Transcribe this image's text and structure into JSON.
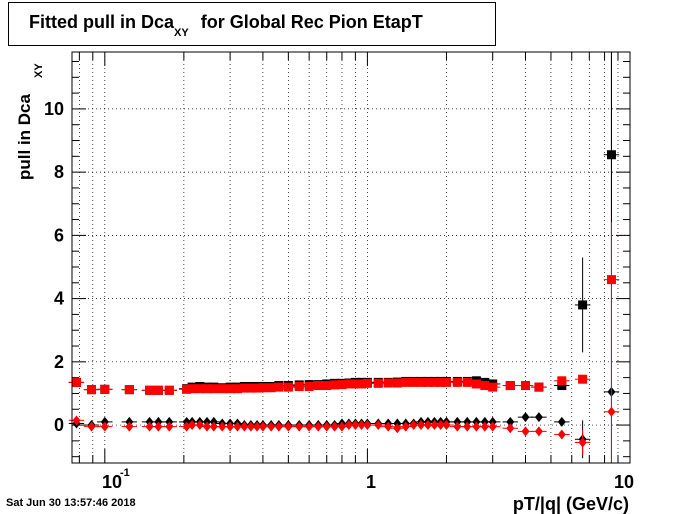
{
  "title": {
    "main": "Fitted pull in Dca",
    "sub": "XY",
    "rest": "for Global Rec Pion EtapT"
  },
  "timestamp": "Sat Jun 30 13:57:46 2018",
  "chart_data": {
    "type": "scatter",
    "title": "Fitted pull in Dca XY for Global Rec Pion EtapT",
    "xlabel": "pT/|q| (GeV/c)",
    "ylabel_main": "pull in Dca",
    "ylabel_sub": "XY",
    "xscale": "log",
    "xlim": [
      0.075,
      10
    ],
    "ylim": [
      -1.2,
      11.8
    ],
    "grid": true,
    "x_tick_labels": [
      {
        "x": 0.1,
        "base": "10",
        "exp": "-1"
      },
      {
        "x": 1,
        "base": "1",
        "exp": ""
      },
      {
        "x": 10,
        "base": "10",
        "exp": ""
      }
    ],
    "y_ticks": [
      0,
      2,
      4,
      6,
      8,
      10
    ],
    "series": [
      {
        "color": "#000000",
        "marker": "square",
        "points": [
          [
            0.078,
            1.35
          ],
          [
            0.089,
            1.12
          ],
          [
            0.1,
            1.13
          ],
          [
            0.124,
            1.12
          ],
          [
            0.148,
            1.1
          ],
          [
            0.16,
            1.1
          ],
          [
            0.176,
            1.1
          ],
          [
            0.205,
            1.15
          ],
          [
            0.215,
            1.2
          ],
          [
            0.23,
            1.22
          ],
          [
            0.245,
            1.2
          ],
          [
            0.26,
            1.2
          ],
          [
            0.28,
            1.18
          ],
          [
            0.3,
            1.2
          ],
          [
            0.32,
            1.2
          ],
          [
            0.34,
            1.22
          ],
          [
            0.36,
            1.22
          ],
          [
            0.38,
            1.22
          ],
          [
            0.4,
            1.22
          ],
          [
            0.43,
            1.22
          ],
          [
            0.46,
            1.25
          ],
          [
            0.5,
            1.25
          ],
          [
            0.55,
            1.27
          ],
          [
            0.6,
            1.28
          ],
          [
            0.65,
            1.28
          ],
          [
            0.7,
            1.3
          ],
          [
            0.75,
            1.32
          ],
          [
            0.8,
            1.32
          ],
          [
            0.85,
            1.33
          ],
          [
            0.9,
            1.35
          ],
          [
            0.95,
            1.35
          ],
          [
            1.0,
            1.35
          ],
          [
            1.1,
            1.35
          ],
          [
            1.2,
            1.35
          ],
          [
            1.3,
            1.36
          ],
          [
            1.4,
            1.38
          ],
          [
            1.5,
            1.38
          ],
          [
            1.6,
            1.38
          ],
          [
            1.7,
            1.38
          ],
          [
            1.8,
            1.38
          ],
          [
            1.9,
            1.38
          ],
          [
            2.0,
            1.38
          ],
          [
            2.2,
            1.38
          ],
          [
            2.4,
            1.38
          ],
          [
            2.6,
            1.4
          ],
          [
            2.8,
            1.35
          ],
          [
            3.0,
            1.3
          ],
          [
            3.5,
            1.25
          ],
          [
            4.0,
            1.25
          ],
          [
            4.5,
            1.2
          ],
          [
            5.5,
            1.25
          ],
          [
            6.6,
            3.8
          ],
          [
            8.5,
            8.55
          ]
        ],
        "yerr": [
          [
            6.6,
            1.5
          ],
          [
            8.5,
            3.3
          ]
        ]
      },
      {
        "color": "#ff0000",
        "marker": "square",
        "points": [
          [
            0.078,
            1.35
          ],
          [
            0.089,
            1.12
          ],
          [
            0.1,
            1.13
          ],
          [
            0.124,
            1.12
          ],
          [
            0.148,
            1.1
          ],
          [
            0.16,
            1.1
          ],
          [
            0.176,
            1.1
          ],
          [
            0.205,
            1.13
          ],
          [
            0.215,
            1.15
          ],
          [
            0.23,
            1.15
          ],
          [
            0.245,
            1.15
          ],
          [
            0.26,
            1.15
          ],
          [
            0.28,
            1.15
          ],
          [
            0.3,
            1.15
          ],
          [
            0.32,
            1.15
          ],
          [
            0.34,
            1.17
          ],
          [
            0.36,
            1.17
          ],
          [
            0.38,
            1.17
          ],
          [
            0.4,
            1.18
          ],
          [
            0.43,
            1.18
          ],
          [
            0.46,
            1.2
          ],
          [
            0.5,
            1.2
          ],
          [
            0.55,
            1.22
          ],
          [
            0.6,
            1.22
          ],
          [
            0.65,
            1.25
          ],
          [
            0.7,
            1.25
          ],
          [
            0.75,
            1.27
          ],
          [
            0.8,
            1.28
          ],
          [
            0.85,
            1.3
          ],
          [
            0.9,
            1.3
          ],
          [
            0.95,
            1.3
          ],
          [
            1.0,
            1.32
          ],
          [
            1.1,
            1.32
          ],
          [
            1.2,
            1.33
          ],
          [
            1.3,
            1.33
          ],
          [
            1.4,
            1.35
          ],
          [
            1.5,
            1.35
          ],
          [
            1.6,
            1.35
          ],
          [
            1.7,
            1.35
          ],
          [
            1.8,
            1.35
          ],
          [
            1.9,
            1.35
          ],
          [
            2.0,
            1.35
          ],
          [
            2.2,
            1.35
          ],
          [
            2.4,
            1.35
          ],
          [
            2.6,
            1.3
          ],
          [
            2.8,
            1.25
          ],
          [
            3.0,
            1.2
          ],
          [
            3.5,
            1.25
          ],
          [
            4.0,
            1.25
          ],
          [
            4.5,
            1.2
          ],
          [
            5.5,
            1.4
          ],
          [
            6.6,
            1.45
          ],
          [
            8.5,
            4.6
          ]
        ],
        "yerr": [
          [
            8.5,
            7.2
          ]
        ]
      },
      {
        "color": "#000000",
        "marker": "diamond",
        "points": [
          [
            0.078,
            0.05
          ],
          [
            0.089,
            0.0
          ],
          [
            0.1,
            0.1
          ],
          [
            0.124,
            0.1
          ],
          [
            0.148,
            0.1
          ],
          [
            0.16,
            0.1
          ],
          [
            0.176,
            0.1
          ],
          [
            0.205,
            0.1
          ],
          [
            0.215,
            0.1
          ],
          [
            0.23,
            0.1
          ],
          [
            0.245,
            0.1
          ],
          [
            0.26,
            0.1
          ],
          [
            0.28,
            0.05
          ],
          [
            0.3,
            0.05
          ],
          [
            0.32,
            0.05
          ],
          [
            0.34,
            0.0
          ],
          [
            0.36,
            0.0
          ],
          [
            0.38,
            0.0
          ],
          [
            0.4,
            0.0
          ],
          [
            0.43,
            0.0
          ],
          [
            0.46,
            0.0
          ],
          [
            0.5,
            0.0
          ],
          [
            0.55,
            0.0
          ],
          [
            0.6,
            0.0
          ],
          [
            0.65,
            0.0
          ],
          [
            0.7,
            0.0
          ],
          [
            0.75,
            0.0
          ],
          [
            0.8,
            0.05
          ],
          [
            0.85,
            0.05
          ],
          [
            0.9,
            0.05
          ],
          [
            0.95,
            0.05
          ],
          [
            1.0,
            0.05
          ],
          [
            1.1,
            0.05
          ],
          [
            1.2,
            0.05
          ],
          [
            1.3,
            0.05
          ],
          [
            1.4,
            0.05
          ],
          [
            1.5,
            0.05
          ],
          [
            1.6,
            0.1
          ],
          [
            1.7,
            0.1
          ],
          [
            1.8,
            0.1
          ],
          [
            1.9,
            0.1
          ],
          [
            2.0,
            0.1
          ],
          [
            2.2,
            0.1
          ],
          [
            2.4,
            0.1
          ],
          [
            2.6,
            0.1
          ],
          [
            2.8,
            0.1
          ],
          [
            3.0,
            0.1
          ],
          [
            3.5,
            0.1
          ],
          [
            4.0,
            0.25
          ],
          [
            4.5,
            0.25
          ],
          [
            5.5,
            0.1
          ],
          [
            6.6,
            -0.45
          ],
          [
            8.5,
            1.05
          ]
        ],
        "yerr": [
          [
            6.6,
            0.6
          ],
          [
            8.5,
            11.0
          ]
        ]
      },
      {
        "color": "#ff0000",
        "marker": "diamond",
        "points": [
          [
            0.078,
            0.15
          ],
          [
            0.089,
            -0.05
          ],
          [
            0.1,
            -0.05
          ],
          [
            0.124,
            -0.05
          ],
          [
            0.148,
            -0.05
          ],
          [
            0.16,
            -0.05
          ],
          [
            0.176,
            -0.05
          ],
          [
            0.205,
            -0.05
          ],
          [
            0.215,
            0.0
          ],
          [
            0.23,
            0.0
          ],
          [
            0.245,
            -0.05
          ],
          [
            0.26,
            -0.05
          ],
          [
            0.28,
            -0.05
          ],
          [
            0.3,
            -0.05
          ],
          [
            0.32,
            -0.05
          ],
          [
            0.34,
            -0.05
          ],
          [
            0.36,
            -0.05
          ],
          [
            0.38,
            -0.05
          ],
          [
            0.4,
            -0.05
          ],
          [
            0.43,
            -0.05
          ],
          [
            0.46,
            -0.05
          ],
          [
            0.5,
            -0.05
          ],
          [
            0.55,
            -0.05
          ],
          [
            0.6,
            -0.05
          ],
          [
            0.65,
            -0.05
          ],
          [
            0.7,
            -0.05
          ],
          [
            0.75,
            -0.05
          ],
          [
            0.8,
            -0.05
          ],
          [
            0.85,
            0.0
          ],
          [
            0.9,
            0.0
          ],
          [
            0.95,
            0.0
          ],
          [
            1.0,
            0.0
          ],
          [
            1.1,
            0.0
          ],
          [
            1.2,
            -0.05
          ],
          [
            1.3,
            -0.1
          ],
          [
            1.4,
            -0.05
          ],
          [
            1.5,
            0.0
          ],
          [
            1.6,
            0.0
          ],
          [
            1.7,
            0.0
          ],
          [
            1.8,
            0.0
          ],
          [
            1.9,
            0.0
          ],
          [
            2.0,
            0.0
          ],
          [
            2.2,
            -0.05
          ],
          [
            2.4,
            -0.05
          ],
          [
            2.6,
            -0.05
          ],
          [
            2.8,
            -0.05
          ],
          [
            3.0,
            -0.05
          ],
          [
            3.5,
            -0.1
          ],
          [
            4.0,
            -0.2
          ],
          [
            4.5,
            -0.2
          ],
          [
            5.5,
            -0.3
          ],
          [
            6.6,
            -0.55
          ],
          [
            8.5,
            0.42
          ]
        ],
        "yerr": [
          [
            6.6,
            0.4
          ],
          [
            8.5,
            6.0
          ]
        ]
      }
    ]
  }
}
